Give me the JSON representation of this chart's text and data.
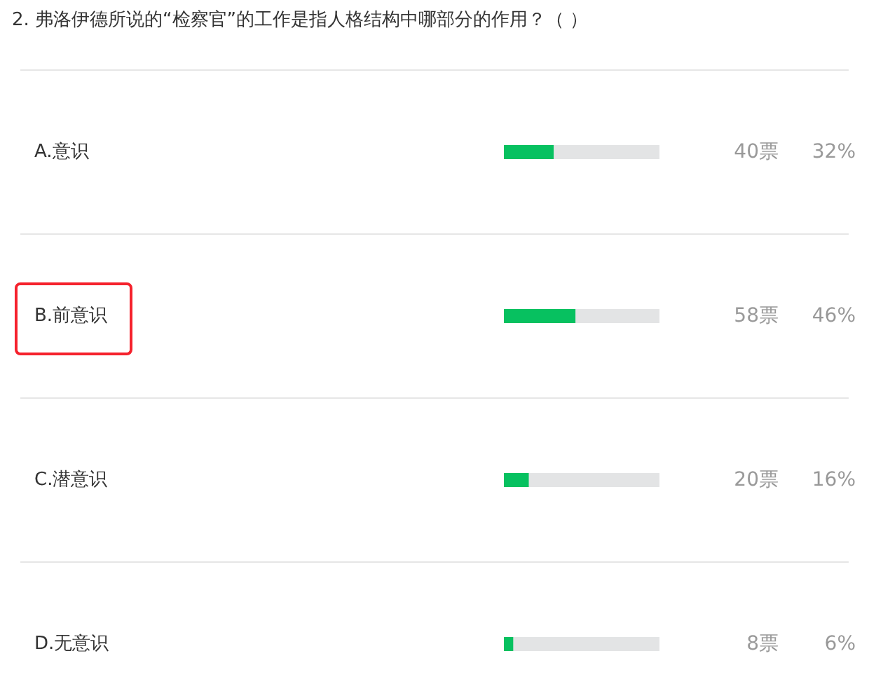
{
  "chart_data": {
    "type": "bar",
    "orientation": "horizontal",
    "title": "2. 弗洛伊德所说的“检察官”的工作是指人格结构中哪部分的作用？（ ）",
    "categories": [
      "A.意识",
      "B.前意识",
      "C.潜意识",
      "D.无意识"
    ],
    "values": [
      32,
      46,
      16,
      6
    ],
    "color": "#07c160",
    "value_labels": [
      "32%",
      "46%",
      "16%",
      "6%"
    ],
    "annotations": [
      "40票",
      "58票",
      "20票",
      "8票"
    ],
    "xlim": [
      0,
      100
    ],
    "tick_labels": "y",
    "grid": "y"
  }
}
